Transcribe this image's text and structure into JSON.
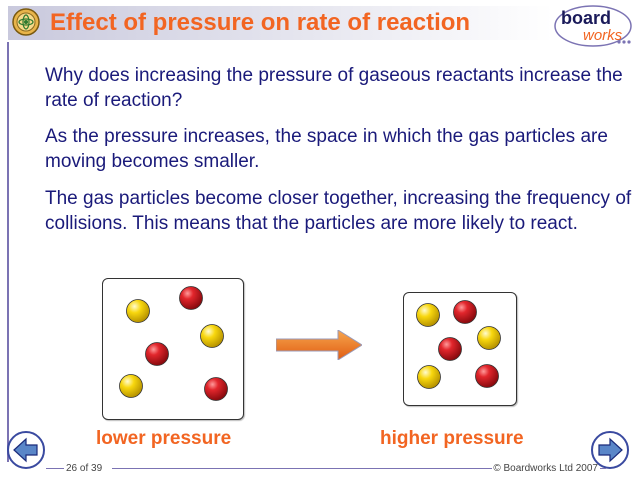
{
  "header": {
    "title": "Effect of pressure on rate of reaction",
    "logo_word1": "board",
    "logo_word2": "works"
  },
  "content": {
    "paragraphs": [
      "Why does increasing the pressure of gaseous reactants increase the rate of reaction?",
      "As the pressure increases, the space in which the gas particles are moving becomes smaller.",
      "The gas particles become closer together, increasing the frequency of collisions. This means that the particles are more likely to react."
    ]
  },
  "diagram": {
    "left_label": "lower pressure",
    "right_label": "higher pressure"
  },
  "footer": {
    "page": "26 of 39",
    "copyright": "© Boardworks Ltd 2007"
  },
  "colors": {
    "title": "#f26522",
    "body_text": "#1a1a7a",
    "frame": "#7b73b3",
    "particle_red": "#d4141e",
    "particle_yellow": "#f5d000",
    "arrow": "#f07a2a"
  },
  "icons": [
    "atom-icon",
    "board-works-logo",
    "arrow-right-icon",
    "prev-arrow-icon",
    "next-arrow-icon"
  ]
}
